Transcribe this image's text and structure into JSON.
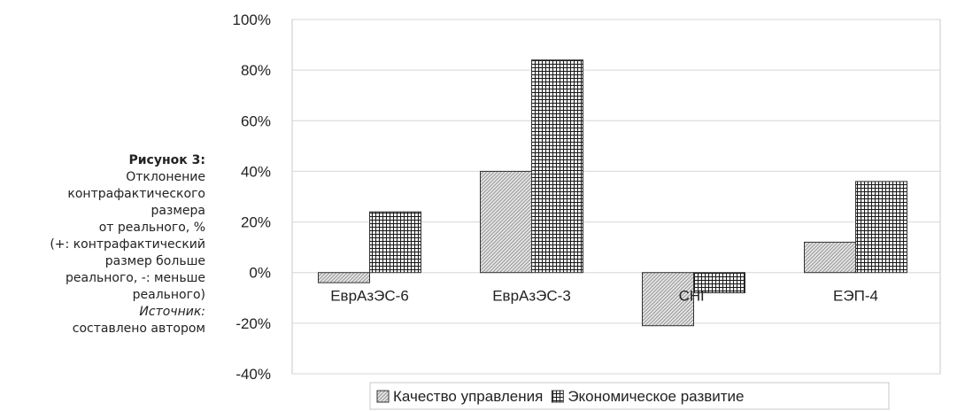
{
  "caption": {
    "title": "Рисунок 3:",
    "lines": [
      "Отклонение",
      "контрафактического",
      "размера",
      "от реального, %",
      "(+: контрафактический",
      "размер больше",
      "реального, -: меньше",
      "реального)"
    ],
    "source_label": "Источник:",
    "source_text": "составлено автором"
  },
  "chart_data": {
    "type": "bar",
    "categories": [
      "ЕврАзЭС-6",
      "ЕврАзЭС-3",
      "СНГ",
      "ЕЭП-4"
    ],
    "series": [
      {
        "name": "Качество управления",
        "values": [
          -4,
          40,
          -21,
          12
        ]
      },
      {
        "name": "Экономическое развитие",
        "values": [
          24,
          84,
          -8,
          36
        ]
      }
    ],
    "ylim": [
      -40,
      100
    ],
    "yticks": [
      "100%",
      "80%",
      "60%",
      "40%",
      "20%",
      "0%",
      "-20%",
      "-40%"
    ],
    "ytick_values": [
      100,
      80,
      60,
      40,
      20,
      0,
      -20,
      -40
    ],
    "grid": true,
    "legend_position": "bottom"
  }
}
